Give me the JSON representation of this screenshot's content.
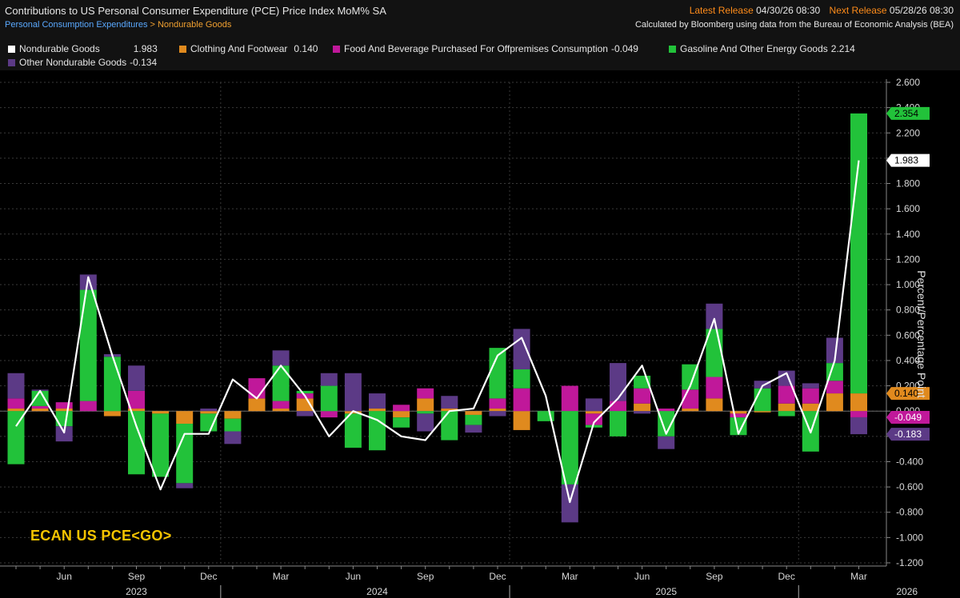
{
  "header": {
    "title": "Contributions to US Personal Consumer Expenditure (PCE) Price Index MoM% SA",
    "breadcrumb_parent": "Personal Consumption Expenditures",
    "breadcrumb_sep": ">",
    "breadcrumb_current": "Nondurable Goods",
    "latest_release_label": "Latest Release",
    "latest_release_value": "04/30/26 08:30",
    "next_release_label": "Next Release",
    "next_release_value": "05/28/26 08:30",
    "source_note": "Calculated by Bloomberg using data from the Bureau of Economic Analysis (BEA)"
  },
  "legend": [
    {
      "label": "Nondurable Goods",
      "value": "1.983",
      "color": "#ffffff"
    },
    {
      "label": "Clothing And Footwear",
      "value": "0.140",
      "color": "#e08a1e"
    },
    {
      "label": "Food And Beverage Purchased For Offpremises Consumption",
      "value": "-0.049",
      "color": "#c0189a"
    },
    {
      "label": "Gasoline And Other Energy Goods",
      "value": "2.214",
      "color": "#22c23a"
    },
    {
      "label": "Other Nondurable Goods",
      "value": "-0.134",
      "color": "#5c3a86"
    }
  ],
  "watermark": "ECAN US PCE<GO>",
  "chart_data": {
    "type": "bar",
    "subtype": "stacked bar with line overlay",
    "ylabel": "Percent/Percentage Point",
    "ylim": [
      -1.2,
      2.6
    ],
    "y_ticks": [
      "2.600",
      "2.400",
      "2.200",
      "2.000",
      "1.800",
      "1.600",
      "1.400",
      "1.200",
      "1.000",
      "0.800",
      "0.600",
      "0.400",
      "0.200",
      "0.000",
      "-0.200",
      "-0.400",
      "-0.600",
      "-0.800",
      "-1.000",
      "-1.200"
    ],
    "grid": true,
    "legend_position": "top",
    "x_tick_labels": [
      "Jun",
      "Sep",
      "Dec",
      "Mar",
      "Jun",
      "Sep",
      "Dec",
      "Mar",
      "Jun",
      "Sep",
      "Dec",
      "Mar"
    ],
    "x_tick_month_index": [
      2,
      5,
      8,
      11,
      14,
      17,
      20,
      23,
      26,
      29,
      32,
      35
    ],
    "year_labels": [
      {
        "label": "2023",
        "month_index": 5
      },
      {
        "label": "2024",
        "month_index": 15
      },
      {
        "label": "2025",
        "month_index": 27
      },
      {
        "label": "2026",
        "month_index": 37
      }
    ],
    "year_dividers": [
      8.5,
      20.5,
      32.5
    ],
    "months": [
      "Apr 2023",
      "May 2023",
      "Jun 2023",
      "Jul 2023",
      "Aug 2023",
      "Sep 2023",
      "Oct 2023",
      "Nov 2023",
      "Dec 2023",
      "Jan 2024",
      "Feb 2024",
      "Mar 2024",
      "Apr 2024",
      "May 2024",
      "Jun 2024",
      "Jul 2024",
      "Aug 2024",
      "Sep 2024",
      "Oct 2024",
      "Nov 2024",
      "Dec 2024",
      "Jan 2025",
      "Feb 2025",
      "Mar 2025",
      "Apr 2025",
      "May 2025",
      "Jun 2025",
      "Jul 2025",
      "Aug 2025",
      "Sep 2025",
      "Oct 2025",
      "Nov 2025",
      "Dec 2025",
      "Jan 2026",
      "Feb 2026",
      "Mar 2026"
    ],
    "series": [
      {
        "name": "Clothing And Footwear",
        "color": "#e08a1e",
        "values": [
          0.02,
          0.02,
          0.02,
          0.0,
          -0.04,
          0.02,
          -0.02,
          -0.1,
          -0.02,
          -0.06,
          0.1,
          0.02,
          0.1,
          0.0,
          -0.02,
          0.02,
          -0.05,
          0.1,
          0.02,
          -0.03,
          0.02,
          -0.15,
          0.0,
          0.0,
          -0.02,
          0.0,
          0.06,
          0.0,
          0.02,
          0.1,
          -0.02,
          -0.01,
          0.06,
          0.06,
          0.14,
          0.14
        ]
      },
      {
        "name": "Food And Beverage Purchased For Offpremises Consumption",
        "color": "#c0189a",
        "values": [
          0.08,
          0.02,
          0.05,
          0.08,
          0.0,
          0.14,
          0.0,
          0.0,
          0.0,
          0.0,
          0.16,
          0.06,
          0.04,
          -0.05,
          0.0,
          0.0,
          0.05,
          0.08,
          0.0,
          0.0,
          0.08,
          0.18,
          0.0,
          0.2,
          -0.09,
          0.08,
          0.12,
          0.02,
          0.15,
          0.17,
          -0.03,
          0.0,
          0.14,
          0.12,
          0.1,
          -0.049
        ]
      },
      {
        "name": "Gasoline And Other Energy Goods",
        "color": "#22c23a",
        "values": [
          -0.42,
          0.12,
          -0.12,
          0.88,
          0.43,
          -0.5,
          -0.5,
          -0.47,
          -0.14,
          -0.1,
          0.0,
          0.28,
          0.02,
          0.2,
          -0.27,
          -0.31,
          -0.08,
          -0.02,
          -0.23,
          -0.08,
          0.4,
          0.15,
          -0.08,
          -0.58,
          -0.02,
          -0.2,
          0.1,
          -0.2,
          0.2,
          0.38,
          -0.14,
          0.18,
          -0.04,
          -0.32,
          0.14,
          2.214
        ]
      },
      {
        "name": "Other Nondurable Goods",
        "color": "#5c3a86",
        "values": [
          0.2,
          0.01,
          -0.12,
          0.12,
          0.02,
          0.2,
          0.0,
          -0.04,
          0.02,
          -0.1,
          0.0,
          0.12,
          -0.04,
          0.1,
          0.3,
          0.12,
          0.0,
          -0.14,
          0.1,
          -0.06,
          -0.04,
          0.32,
          0.0,
          -0.3,
          0.1,
          0.3,
          -0.02,
          -0.1,
          0.0,
          0.2,
          0.0,
          0.06,
          0.12,
          0.04,
          0.2,
          -0.134
        ]
      }
    ],
    "line": {
      "name": "Nondurable Goods",
      "color": "#ffffff",
      "values": [
        -0.12,
        0.16,
        -0.17,
        1.06,
        0.44,
        -0.12,
        -0.62,
        -0.18,
        -0.18,
        0.25,
        0.1,
        0.36,
        0.12,
        -0.2,
        0.0,
        -0.07,
        -0.2,
        -0.23,
        0.0,
        0.02,
        0.44,
        0.58,
        0.12,
        -0.72,
        -0.09,
        0.1,
        0.36,
        -0.18,
        0.2,
        0.73,
        -0.18,
        0.2,
        0.3,
        -0.17,
        0.4,
        1.983
      ]
    },
    "right_markers": [
      {
        "label": "2.354",
        "value": 2.354,
        "color": "#22c23a",
        "text_color": "#000000"
      },
      {
        "label": "1.983",
        "value": 1.983,
        "color": "#ffffff",
        "text_color": "#000000"
      },
      {
        "label": "0.140",
        "value": 0.14,
        "color": "#e08a1e",
        "text_color": "#000000"
      },
      {
        "label": "-0.049",
        "value": -0.049,
        "color": "#c0189a",
        "text_color": "#ffffff"
      },
      {
        "label": "-0.183",
        "value": -0.183,
        "color": "#5c3a86",
        "text_color": "#ffffff"
      }
    ]
  }
}
